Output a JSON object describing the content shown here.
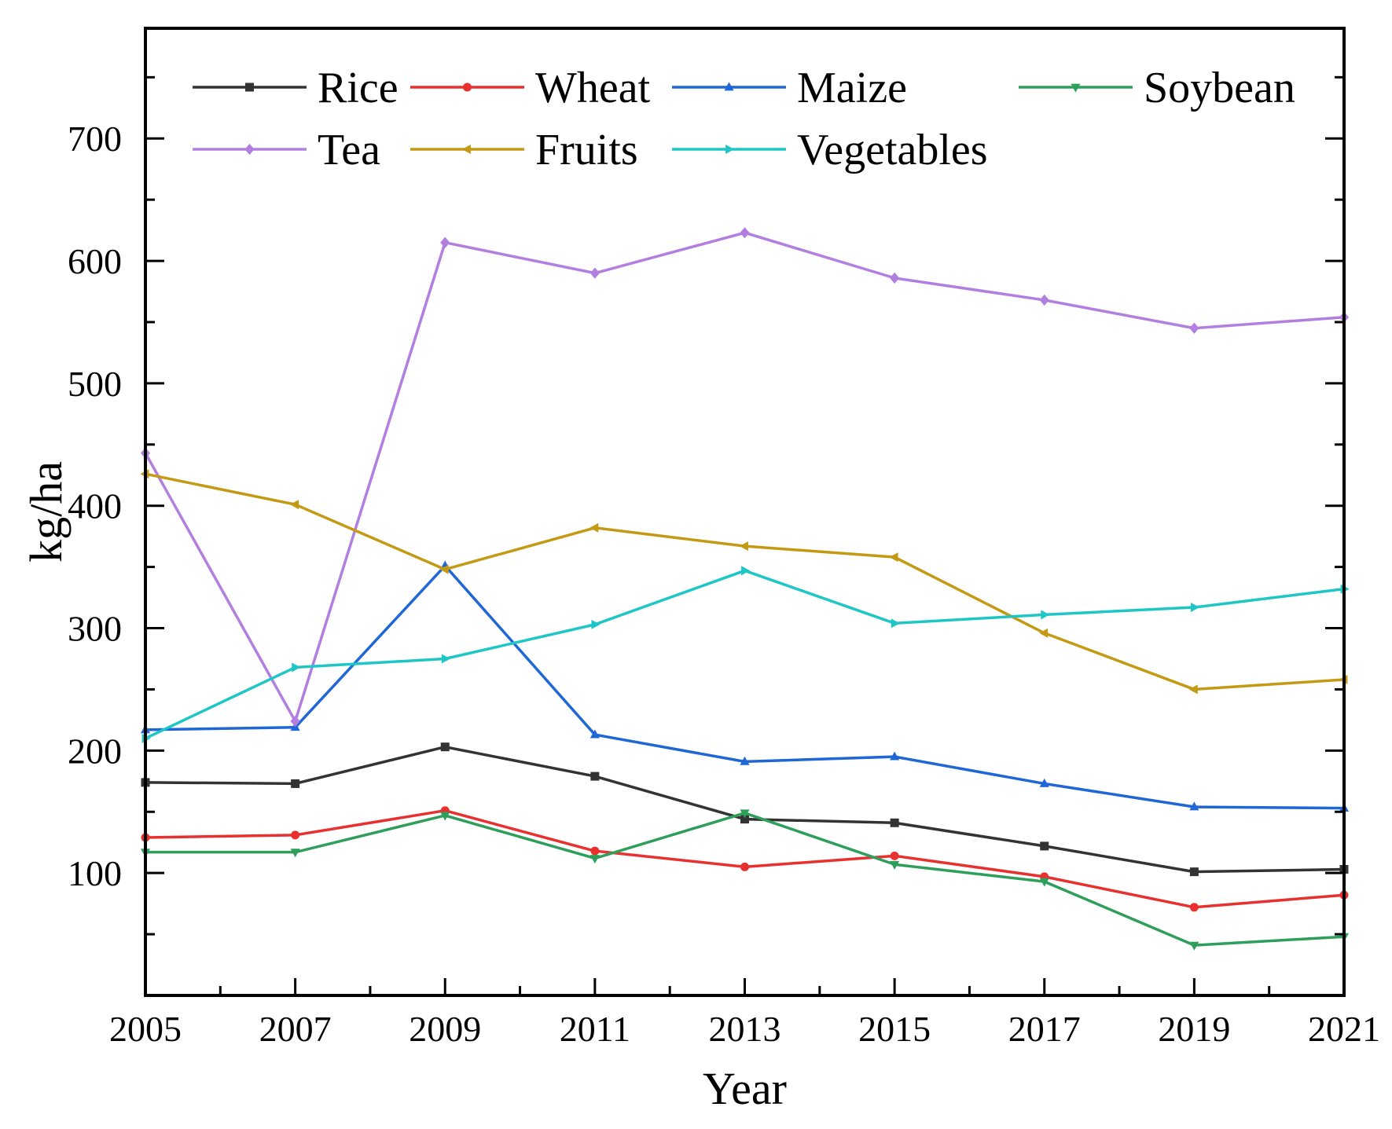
{
  "chart_data": {
    "type": "line",
    "title": "",
    "xlabel": "Year",
    "ylabel": "kg/ha",
    "xlim": [
      2005,
      2021
    ],
    "ylim": [
      0,
      790
    ],
    "x": [
      2005,
      2007,
      2009,
      2011,
      2013,
      2015,
      2017,
      2019,
      2021
    ],
    "x_ticks": [
      "2005",
      "2007",
      "2009",
      "2011",
      "2013",
      "2015",
      "2017",
      "2019",
      "2021"
    ],
    "y_ticks": [
      "100",
      "200",
      "300",
      "400",
      "500",
      "600",
      "700"
    ],
    "y_tick_values": [
      100,
      200,
      300,
      400,
      500,
      600,
      700
    ],
    "grid": false,
    "legend_position": "top",
    "series": [
      {
        "name": "Rice",
        "color": "#333333",
        "marker": "square",
        "values": [
          174,
          173,
          203,
          179,
          144,
          141,
          122,
          101,
          103
        ]
      },
      {
        "name": "Wheat",
        "color": "#e8312f",
        "marker": "circle",
        "values": [
          129,
          131,
          151,
          118,
          105,
          114,
          97,
          72,
          82
        ]
      },
      {
        "name": "Maize",
        "color": "#1f66d6",
        "marker": "triangle-up",
        "values": [
          217,
          219,
          351,
          213,
          191,
          195,
          173,
          154,
          153
        ]
      },
      {
        "name": "Soybean",
        "color": "#2e9e5b",
        "marker": "triangle-down",
        "values": [
          117,
          117,
          147,
          112,
          149,
          107,
          93,
          41,
          48
        ]
      },
      {
        "name": "Tea",
        "color": "#b27ee0",
        "marker": "diamond",
        "values": [
          443,
          224,
          615,
          590,
          623,
          586,
          568,
          545,
          554
        ]
      },
      {
        "name": "Fruits",
        "color": "#c49a14",
        "marker": "triangle-left",
        "values": [
          426,
          401,
          348,
          382,
          367,
          358,
          296,
          250,
          258
        ]
      },
      {
        "name": "Vegetables",
        "color": "#1fc6c6",
        "marker": "triangle-right",
        "values": [
          210,
          268,
          275,
          303,
          347,
          304,
          311,
          317,
          332
        ]
      }
    ]
  }
}
